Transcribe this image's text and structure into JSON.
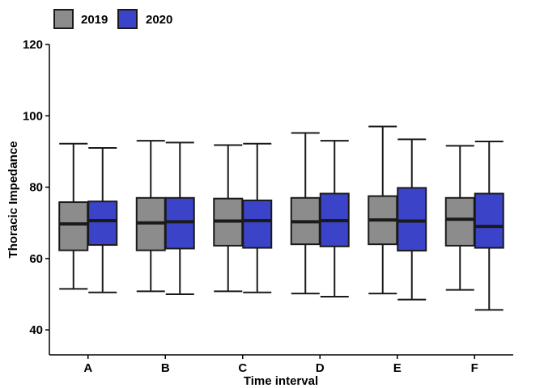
{
  "chart_data": {
    "type": "boxplot",
    "title": "",
    "xlabel": "Time interval",
    "ylabel": "Thoracic Impedance",
    "categories": [
      "A",
      "B",
      "C",
      "D",
      "E",
      "F"
    ],
    "ylim": [
      33,
      120
    ],
    "yticks": [
      40,
      60,
      80,
      100,
      120
    ],
    "legend_position": "top-left",
    "grid": false,
    "series": [
      {
        "name": "2019",
        "color": "#8c8c8c",
        "boxes": [
          {
            "low": 51.5,
            "q1": 62.3,
            "median": 69.7,
            "q3": 75.8,
            "high": 92.2
          },
          {
            "low": 50.8,
            "q1": 62.3,
            "median": 70.0,
            "q3": 77.0,
            "high": 93.0
          },
          {
            "low": 50.8,
            "q1": 63.6,
            "median": 70.5,
            "q3": 76.8,
            "high": 91.8
          },
          {
            "low": 50.2,
            "q1": 64.0,
            "median": 70.3,
            "q3": 77.0,
            "high": 95.2
          },
          {
            "low": 50.2,
            "q1": 64.0,
            "median": 70.8,
            "q3": 77.5,
            "high": 97.0
          },
          {
            "low": 51.2,
            "q1": 63.6,
            "median": 71.0,
            "q3": 77.0,
            "high": 91.6
          }
        ]
      },
      {
        "name": "2020",
        "color": "#3b44c8",
        "boxes": [
          {
            "low": 50.5,
            "q1": 63.8,
            "median": 70.6,
            "q3": 76.0,
            "high": 91.0
          },
          {
            "low": 50.0,
            "q1": 62.8,
            "median": 70.3,
            "q3": 77.0,
            "high": 92.5
          },
          {
            "low": 50.5,
            "q1": 63.0,
            "median": 70.6,
            "q3": 76.3,
            "high": 92.2
          },
          {
            "low": 49.3,
            "q1": 63.4,
            "median": 70.6,
            "q3": 78.2,
            "high": 93.0
          },
          {
            "low": 48.5,
            "q1": 62.2,
            "median": 70.5,
            "q3": 79.8,
            "high": 93.4
          },
          {
            "low": 45.6,
            "q1": 63.0,
            "median": 69.0,
            "q3": 78.2,
            "high": 92.8
          }
        ]
      }
    ]
  }
}
